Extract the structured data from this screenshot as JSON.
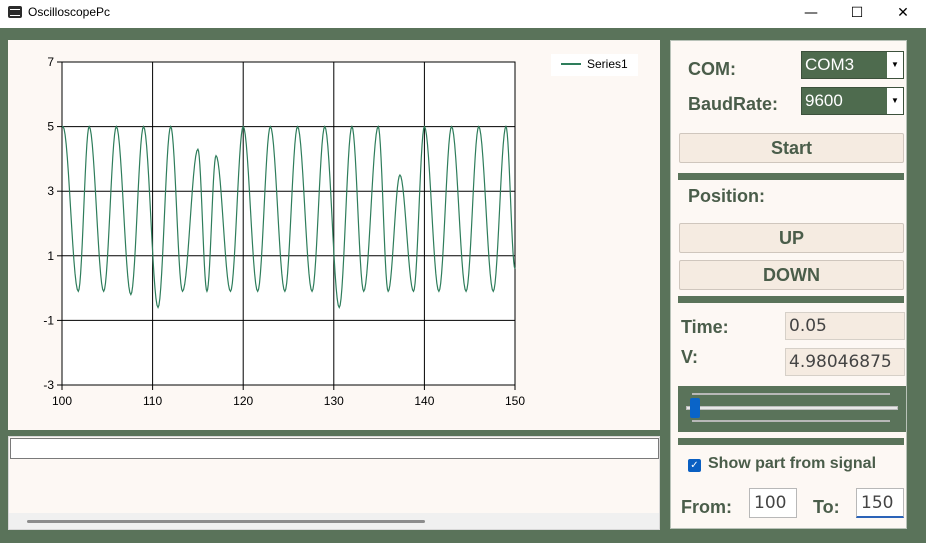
{
  "window": {
    "title": "OscilloscopePc",
    "minimize_glyph": "—",
    "maximize_glyph": "☐",
    "close_glyph": "✕"
  },
  "colors": {
    "frame_green": "#5a735a",
    "panel_bg": "#fdf8f4",
    "series_color": "#2e7d5b",
    "button_bg": "#f5ebe1",
    "label_color": "#4a5d4a"
  },
  "controls": {
    "com_label": "COM:",
    "com_value": "COM3",
    "baud_label": "BaudRate:",
    "baud_value": "9600",
    "start_button": "Start",
    "position_label": "Position:",
    "up_button": "UP",
    "down_button": "DOWN",
    "time_label": "Time:",
    "time_value": "0.05",
    "v_label": "V:",
    "v_value": "4.98046875",
    "slider_value_fraction": 0.02,
    "show_part_checked": true,
    "show_part_label": "Show part from signal",
    "from_label": "From:",
    "from_value": "100",
    "to_label": "To:",
    "to_value": "150",
    "log_text": ""
  },
  "chart_data": {
    "type": "line",
    "title": "",
    "xlabel": "",
    "ylabel": "",
    "xlim": [
      100,
      150
    ],
    "ylim": [
      -3,
      7
    ],
    "x_ticks": [
      100,
      110,
      120,
      130,
      140,
      150
    ],
    "y_ticks": [
      -3,
      -1,
      1,
      3,
      5,
      7
    ],
    "grid": true,
    "legend_position": "top-right",
    "series": [
      {
        "name": "Series1",
        "color": "#2e7d5b",
        "peaks": [
          [
            100.1,
            5.0
          ],
          [
            103.0,
            5.0
          ],
          [
            106.0,
            5.0
          ],
          [
            109.0,
            5.0
          ],
          [
            112.0,
            5.0
          ],
          [
            115.0,
            4.3
          ],
          [
            117.0,
            4.1
          ],
          [
            120.0,
            5.0
          ],
          [
            123.0,
            5.0
          ],
          [
            126.0,
            5.0
          ],
          [
            129.0,
            5.0
          ],
          [
            132.0,
            5.0
          ],
          [
            134.9,
            5.0
          ],
          [
            137.3,
            3.5
          ],
          [
            140.0,
            5.0
          ],
          [
            143.0,
            5.0
          ],
          [
            146.0,
            5.0
          ],
          [
            149.0,
            5.0
          ]
        ],
        "troughs": [
          [
            101.8,
            -0.1
          ],
          [
            104.6,
            -0.1
          ],
          [
            107.6,
            -0.2
          ],
          [
            110.6,
            -0.6
          ],
          [
            113.3,
            -0.1
          ],
          [
            116.0,
            -0.1
          ],
          [
            118.6,
            -0.1
          ],
          [
            121.6,
            -0.1
          ],
          [
            124.6,
            -0.1
          ],
          [
            127.6,
            -0.1
          ],
          [
            130.6,
            -0.6
          ],
          [
            133.3,
            -0.1
          ],
          [
            136.0,
            -0.1
          ],
          [
            138.8,
            -0.1
          ],
          [
            141.6,
            -0.1
          ],
          [
            144.6,
            -0.1
          ],
          [
            147.6,
            -0.1
          ],
          [
            150.0,
            0.6
          ]
        ]
      }
    ]
  }
}
